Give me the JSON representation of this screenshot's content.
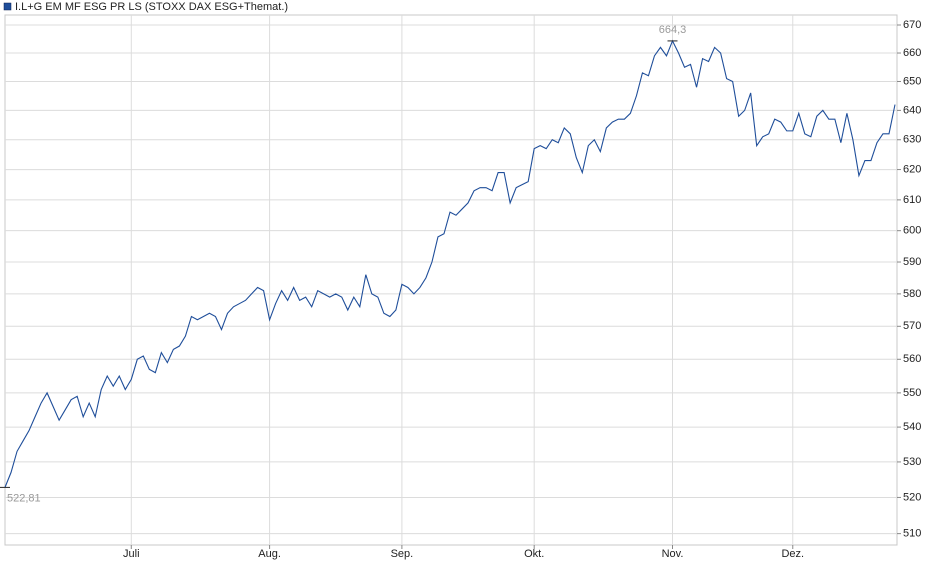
{
  "chart_data": {
    "type": "line",
    "series": [
      {
        "name": "I.L+G EM MF ESG PR LS (STOXX DAX ESG+Themat.)",
        "color": "#1f4e9a",
        "values": [
          522.81,
          527,
          533,
          536,
          539,
          543,
          547,
          550,
          546,
          542,
          545,
          548,
          549,
          543,
          547,
          543,
          551,
          555,
          552,
          555,
          551,
          554,
          560,
          561,
          557,
          556,
          562,
          559,
          563,
          564,
          567,
          573,
          572,
          573,
          574,
          573,
          569,
          574,
          576,
          577,
          578,
          580,
          582,
          581,
          572,
          577,
          581,
          578,
          582,
          578,
          579,
          576,
          581,
          580,
          579,
          580,
          579,
          575,
          579,
          576,
          586,
          580,
          579,
          574,
          573,
          575,
          583,
          582,
          580,
          582,
          585,
          590,
          598,
          599,
          606,
          605,
          607,
          609,
          613,
          614,
          614,
          613,
          619,
          619,
          609,
          614,
          615,
          616,
          627,
          628,
          627,
          630,
          629,
          634,
          632,
          624,
          619,
          628,
          630,
          626,
          634,
          636,
          637,
          637,
          639,
          645,
          653,
          652,
          659,
          662,
          659,
          664.3,
          660,
          655,
          656,
          648,
          658,
          657,
          662,
          660,
          651,
          650,
          638,
          640,
          646,
          628,
          631,
          632,
          637,
          636,
          633,
          633,
          639,
          632,
          631,
          638,
          640,
          637,
          637,
          629,
          639,
          630,
          618,
          623,
          623,
          629,
          632,
          632,
          642
        ],
        "value_labels": [
          "522,81",
          null,
          null,
          null,
          null,
          null,
          null,
          null,
          null,
          null,
          null,
          null,
          null,
          null,
          null,
          null,
          null,
          null,
          null,
          null,
          null,
          null,
          null,
          null,
          null,
          null,
          null,
          null,
          null,
          null,
          null,
          null,
          null,
          null,
          null,
          null,
          null,
          null,
          null,
          null,
          null,
          null,
          null,
          null,
          null,
          null,
          null,
          null,
          null,
          null,
          null,
          null,
          null,
          null,
          null,
          null,
          null,
          null,
          null,
          null,
          null,
          null,
          null,
          null,
          null,
          null,
          null,
          null,
          null,
          null,
          null,
          null,
          null,
          null,
          null,
          null,
          null,
          null,
          null,
          null,
          null,
          null,
          null,
          null,
          null,
          null,
          null,
          null,
          null,
          null,
          null,
          null,
          null,
          null,
          null,
          null,
          null,
          null,
          null,
          null,
          null,
          null,
          null,
          null,
          null,
          null,
          null,
          null,
          null,
          null,
          null,
          "664,3",
          null,
          null,
          null,
          null,
          null,
          null,
          null,
          null,
          null,
          null,
          null,
          null,
          null,
          null,
          null,
          null,
          null,
          null,
          null,
          null,
          null,
          null,
          null,
          null,
          null,
          null,
          null,
          null,
          null,
          null,
          null,
          null,
          null,
          null,
          null,
          null,
          null
        ]
      }
    ],
    "categories": [
      null,
      null,
      null,
      null,
      null,
      null,
      null,
      null,
      null,
      null,
      null,
      null,
      null,
      null,
      null,
      null,
      null,
      null,
      null,
      null,
      null,
      "Juli",
      null,
      null,
      null,
      null,
      null,
      null,
      null,
      null,
      null,
      null,
      null,
      null,
      null,
      null,
      null,
      null,
      null,
      null,
      null,
      null,
      null,
      null,
      "Aug.",
      null,
      null,
      null,
      null,
      null,
      null,
      null,
      null,
      null,
      null,
      null,
      null,
      null,
      null,
      null,
      null,
      null,
      null,
      null,
      null,
      null,
      "Sep.",
      null,
      null,
      null,
      null,
      null,
      null,
      null,
      null,
      null,
      null,
      null,
      null,
      null,
      null,
      null,
      null,
      null,
      null,
      null,
      null,
      null,
      "Okt.",
      null,
      null,
      null,
      null,
      null,
      null,
      null,
      null,
      null,
      null,
      null,
      null,
      null,
      null,
      null,
      null,
      null,
      null,
      null,
      null,
      null,
      null,
      "Nov.",
      null,
      null,
      null,
      null,
      null,
      null,
      null,
      null,
      null,
      null,
      null,
      null,
      null,
      null,
      null,
      null,
      null,
      null,
      null,
      "Dez.",
      null,
      null,
      null,
      null,
      null,
      null,
      null,
      null,
      null,
      null,
      null,
      null,
      null,
      null,
      null,
      null,
      null
    ],
    "ylim": [
      506.9,
      673.6
    ],
    "yticks": [
      510,
      520,
      530,
      540,
      550,
      560,
      570,
      580,
      590,
      600,
      610,
      620,
      630,
      640,
      650,
      660,
      670
    ],
    "log_y": true,
    "grid": true
  }
}
